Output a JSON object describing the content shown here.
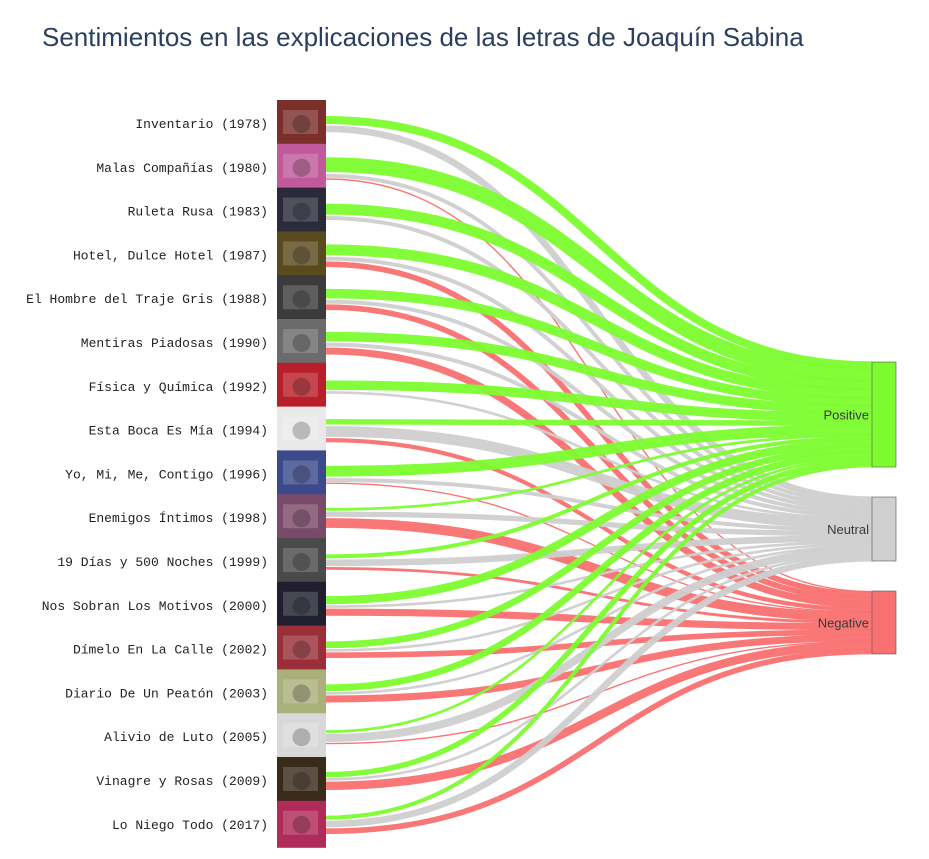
{
  "chart_data": {
    "type": "sankey",
    "title": "Sentimientos en las explicaciones de las letras de Joaquín Sabina",
    "albums": [
      "Inventario (1978)",
      "Malas Compañías (1980)",
      "Ruleta Rusa (1983)",
      "Hotel, Dulce Hotel (1987)",
      "El Hombre del Traje Gris (1988)",
      "Mentiras Piadosas (1990)",
      "Física y Química (1992)",
      "Esta Boca Es Mía (1994)",
      "Yo, Mi, Me, Contigo (1996)",
      "Enemigos Íntimos (1998)",
      "19 Días y 500 Noches (1999)",
      "Nos Sobran Los Motivos (2000)",
      "Dímelo En La Calle (2002)",
      "Diario De Un Peatón (2003)",
      "Alivio de Luto (2005)",
      "Vinagre y Rosas (2009)",
      "Lo Niego Todo (2017)"
    ],
    "sentiments": [
      {
        "name": "Positive",
        "color": "#7cfc2f"
      },
      {
        "name": "Neutral",
        "color": "#cfcfcf"
      },
      {
        "name": "Negative",
        "color": "#f97070"
      }
    ],
    "flows": [
      [
        6,
        5,
        0
      ],
      [
        11,
        3,
        1
      ],
      [
        8,
        3,
        0
      ],
      [
        8,
        3,
        4
      ],
      [
        7,
        3,
        4
      ],
      [
        7,
        3,
        5
      ],
      [
        7,
        2,
        0
      ],
      [
        4,
        8,
        3
      ],
      [
        8,
        3,
        1
      ],
      [
        2,
        4,
        7
      ],
      [
        3,
        5,
        2
      ],
      [
        6,
        2,
        5
      ],
      [
        5,
        2,
        4
      ],
      [
        5,
        2,
        5
      ],
      [
        2,
        6,
        1
      ],
      [
        4,
        2,
        6
      ],
      [
        3,
        5,
        4
      ]
    ]
  }
}
